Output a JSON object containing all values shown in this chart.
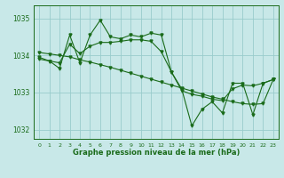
{
  "x": [
    0,
    1,
    2,
    3,
    4,
    5,
    6,
    7,
    8,
    9,
    10,
    11,
    12,
    13,
    14,
    15,
    16,
    17,
    18,
    19,
    20,
    21,
    22,
    23
  ],
  "y_main": [
    1033.9,
    1033.85,
    1033.65,
    1034.55,
    1033.8,
    1034.55,
    1034.95,
    1034.5,
    1034.45,
    1034.55,
    1034.5,
    1034.6,
    1034.55,
    1033.55,
    1033.1,
    1032.1,
    1032.55,
    1032.75,
    1032.45,
    1033.25,
    1033.25,
    1032.4,
    1033.25,
    1033.35
  ],
  "y_smooth1": [
    1033.95,
    1033.85,
    1033.8,
    1034.3,
    1034.05,
    1034.25,
    1034.35,
    1034.35,
    1034.38,
    1034.42,
    1034.42,
    1034.38,
    1034.1,
    1033.55,
    1033.05,
    1032.95,
    1032.9,
    1032.82,
    1032.78,
    1033.1,
    1033.2,
    1033.18,
    1033.25,
    1033.35
  ],
  "y_trend": [
    1034.08,
    1034.04,
    1034.0,
    1033.96,
    1033.88,
    1033.82,
    1033.75,
    1033.68,
    1033.6,
    1033.52,
    1033.44,
    1033.36,
    1033.28,
    1033.2,
    1033.12,
    1033.04,
    1032.96,
    1032.88,
    1032.82,
    1032.75,
    1032.7,
    1032.68,
    1032.7,
    1033.35
  ],
  "bg_color": "#c8e8e8",
  "line_color": "#1a6b1a",
  "grid_color": "#99cccc",
  "xlabel": "Graphe pression niveau de la mer (hPa)",
  "yticks": [
    1032,
    1033,
    1034,
    1035
  ],
  "xticks": [
    0,
    1,
    2,
    3,
    4,
    5,
    6,
    7,
    8,
    9,
    10,
    11,
    12,
    13,
    14,
    15,
    16,
    17,
    18,
    19,
    20,
    21,
    22,
    23
  ],
  "ylim": [
    1031.75,
    1035.35
  ],
  "xlim": [
    -0.5,
    23.5
  ]
}
